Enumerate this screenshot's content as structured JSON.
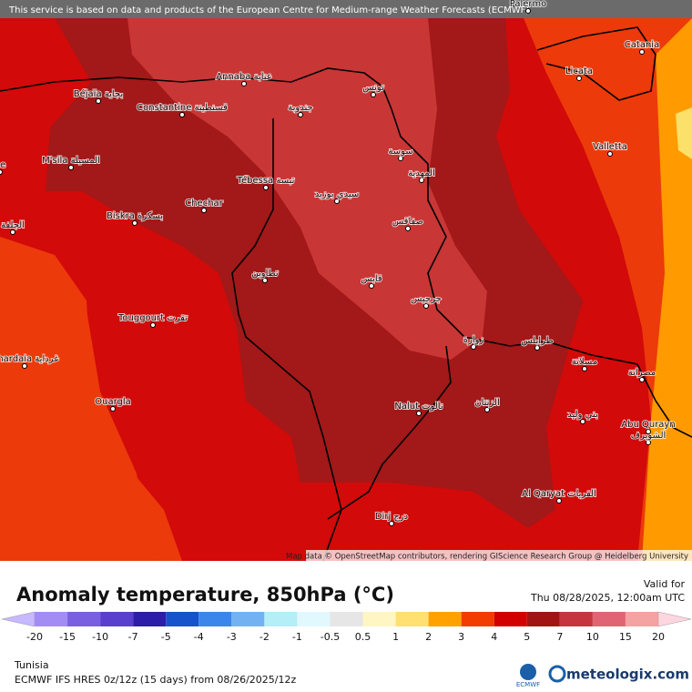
{
  "header": {
    "notice": "This service is based on data and products of the European Centre for Medium-range Weather Forecasts (ECMWF)"
  },
  "map": {
    "attribution": "Map data © OpenStreetMap contributors, rendering GIScience Research Group @ Heidelberg University",
    "cities": [
      "Palermo",
      "Catania",
      "Licata",
      "Valletta",
      "Annaba عنابة",
      "Béjaïa بجاية",
      "Constantine قسنطينة",
      "تونس",
      "جندوبة",
      "M'sila المسيلة",
      "ne",
      "سوسة",
      "المهدية",
      "Tébessa تبسة",
      "سيدي بوزيد",
      "Chechar",
      "الجلفة",
      "Biskra بسكرة",
      "صفاقس",
      "قابس",
      "تطاوين",
      "جرجيس",
      "Touggourt تقرت",
      "زوارة",
      "طرابلس",
      "Ghardaia غرداية",
      "مسلاتة",
      "مصراتة",
      "Ouargla",
      "Nalut نالوت",
      "الزنتان",
      "بني وليد",
      "Abu Qurayn",
      "الشويرف",
      "Al Qaryat القريات",
      "Dirj درج"
    ]
  },
  "panel": {
    "title": "Anomaly temperature, 850hPa (°C)",
    "valid_label": "Valid for",
    "valid_time": "Thu 08/28/2025, 12:00am UTC",
    "legend": {
      "labels": [
        "-20",
        "-15",
        "-10",
        "-7",
        "-5",
        "-4",
        "-3",
        "-2",
        "-1",
        "-0.5",
        "0.5",
        "1",
        "2",
        "3",
        "4",
        "5",
        "7",
        "10",
        "15",
        "20"
      ],
      "colors": [
        "#c8b8ff",
        "#a48cf5",
        "#7a5fe0",
        "#5a3fcf",
        "#2c1ea8",
        "#1553cc",
        "#3b86ea",
        "#72b2f2",
        "#b4eef6",
        "#e2f8ff",
        "#e6e6e6",
        "#fff6c4",
        "#ffe070",
        "#ffa200",
        "#f23c00",
        "#d20000",
        "#a21414",
        "#c63440",
        "#e06474",
        "#f5a2a2",
        "#ffd6e0"
      ]
    },
    "region": "Tunisia",
    "model": "ECMWF IFS HRES 0z/12z (15 days) from 08/26/2025/12z",
    "ecmwf_logo": "ECMWF",
    "brand": "meteologix.com"
  }
}
